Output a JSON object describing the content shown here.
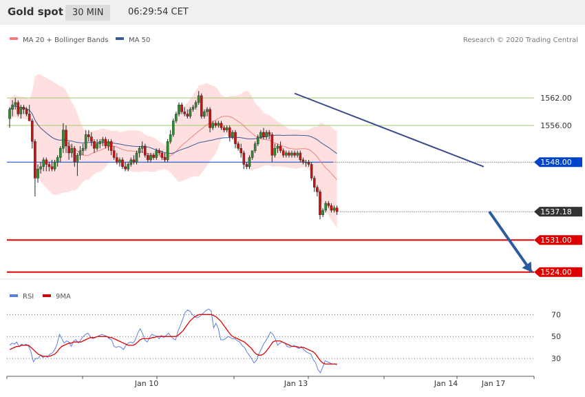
{
  "header": {
    "title": "Gold spot",
    "timeframe": "30 MIN",
    "time": "06:29:54 CET"
  },
  "legend": {
    "ma20": "MA 20 + Bollinger Bands",
    "ma50": "MA 50",
    "credit": "Research © 2020 Trading Central"
  },
  "rsi_legend": {
    "rsi": "RSI",
    "ma9": "9MA"
  },
  "colors": {
    "candle_up": "#2e8b2e",
    "candle_down": "#cc1111",
    "band": "#ffd6d6",
    "ma20": "#f08080",
    "ma50": "#3a5a9a",
    "support": "#0044cc",
    "resistance": "#9ccc65",
    "target": "#dd0000",
    "current": "#333333",
    "arrow": "#2a5aa0",
    "rsi_line": "#5b7fe0",
    "rsi_ma": "#dd0000"
  },
  "chart_data": [
    {
      "type": "candlestick",
      "title": "Gold spot",
      "timeframe": "30 MIN",
      "ylim": [
        1520.5,
        1571.5
      ],
      "x_labels": [
        "Jan 10",
        "Jan 13",
        "Jan 14",
        "Jan 17"
      ],
      "price_levels": [
        {
          "value": 1562.0,
          "label": "1562.00",
          "kind": "resistance"
        },
        {
          "value": 1556.0,
          "label": "1556.00",
          "kind": "resistance"
        },
        {
          "value": 1548.0,
          "label": "1548.00",
          "kind": "pivot"
        },
        {
          "value": 1537.18,
          "label": "1537.18",
          "kind": "current"
        },
        {
          "value": 1531.0,
          "label": "1531.00",
          "kind": "target"
        },
        {
          "value": 1524.0,
          "label": "1524.00",
          "kind": "target"
        }
      ],
      "candles": [
        [
          1557.5,
          1560.0,
          1555.5,
          1559.5
        ],
        [
          1559.5,
          1561.5,
          1558.0,
          1560.5
        ],
        [
          1560.5,
          1562.0,
          1559.5,
          1561.0
        ],
        [
          1561.0,
          1561.5,
          1558.0,
          1558.5
        ],
        [
          1558.5,
          1560.5,
          1557.5,
          1560.0
        ],
        [
          1560.0,
          1560.5,
          1558.5,
          1559.5
        ],
        [
          1559.5,
          1560.0,
          1558.0,
          1558.5
        ],
        [
          1558.5,
          1560.5,
          1557.5,
          1557.0
        ],
        [
          1557.0,
          1557.5,
          1551.0,
          1552.5
        ],
        [
          1552.5,
          1553.0,
          1540.5,
          1544.5
        ],
        [
          1544.5,
          1547.5,
          1543.5,
          1546.5
        ],
        [
          1546.5,
          1548.0,
          1545.5,
          1547.0
        ],
        [
          1547.0,
          1549.0,
          1546.0,
          1548.5
        ],
        [
          1548.5,
          1549.0,
          1546.0,
          1547.5
        ],
        [
          1547.5,
          1548.0,
          1546.0,
          1547.0
        ],
        [
          1547.0,
          1548.5,
          1546.0,
          1546.5
        ],
        [
          1546.5,
          1548.5,
          1546.0,
          1548.0
        ],
        [
          1548.0,
          1549.5,
          1547.0,
          1549.0
        ],
        [
          1549.0,
          1551.5,
          1548.0,
          1551.0
        ],
        [
          1551.0,
          1556.5,
          1550.0,
          1555.0
        ],
        [
          1555.0,
          1556.0,
          1550.0,
          1551.5
        ],
        [
          1551.5,
          1552.5,
          1548.5,
          1550.0
        ],
        [
          1550.0,
          1552.0,
          1549.0,
          1551.0
        ],
        [
          1551.0,
          1551.5,
          1547.0,
          1548.0
        ],
        [
          1548.0,
          1550.0,
          1545.0,
          1549.5
        ],
        [
          1549.5,
          1551.5,
          1548.5,
          1550.5
        ],
        [
          1550.5,
          1552.0,
          1549.5,
          1551.0
        ],
        [
          1551.0,
          1555.0,
          1550.5,
          1554.0
        ],
        [
          1554.0,
          1555.0,
          1552.5,
          1553.5
        ],
        [
          1553.5,
          1554.5,
          1551.5,
          1552.5
        ],
        [
          1552.5,
          1553.0,
          1550.0,
          1551.0
        ],
        [
          1551.0,
          1553.0,
          1550.5,
          1552.0
        ],
        [
          1552.0,
          1553.0,
          1551.0,
          1552.5
        ],
        [
          1552.5,
          1553.5,
          1551.5,
          1553.0
        ],
        [
          1553.0,
          1553.5,
          1551.0,
          1551.5
        ],
        [
          1551.5,
          1553.0,
          1550.5,
          1552.5
        ],
        [
          1552.5,
          1553.0,
          1549.5,
          1550.5
        ],
        [
          1550.5,
          1551.5,
          1548.5,
          1549.0
        ],
        [
          1549.0,
          1550.0,
          1547.5,
          1548.0
        ],
        [
          1548.0,
          1549.0,
          1547.0,
          1548.5
        ],
        [
          1548.5,
          1549.0,
          1546.5,
          1547.0
        ],
        [
          1547.0,
          1548.0,
          1546.0,
          1546.5
        ],
        [
          1546.5,
          1548.0,
          1546.0,
          1547.5
        ],
        [
          1547.5,
          1549.0,
          1547.0,
          1548.5
        ],
        [
          1548.5,
          1549.5,
          1547.5,
          1548.0
        ],
        [
          1548.0,
          1550.5,
          1547.5,
          1550.0
        ],
        [
          1550.0,
          1551.5,
          1549.0,
          1551.0
        ],
        [
          1551.0,
          1552.5,
          1550.0,
          1551.5
        ],
        [
          1551.5,
          1552.0,
          1549.0,
          1549.5
        ],
        [
          1549.5,
          1550.0,
          1548.0,
          1548.5
        ],
        [
          1548.5,
          1550.0,
          1548.0,
          1549.5
        ],
        [
          1549.5,
          1550.0,
          1548.5,
          1549.0
        ],
        [
          1549.0,
          1551.0,
          1548.5,
          1550.5
        ],
        [
          1550.5,
          1551.0,
          1549.5,
          1550.0
        ],
        [
          1550.0,
          1550.5,
          1548.5,
          1549.0
        ],
        [
          1549.0,
          1550.0,
          1548.0,
          1548.5
        ],
        [
          1548.5,
          1553.0,
          1548.0,
          1552.5
        ],
        [
          1552.5,
          1555.0,
          1552.0,
          1554.0
        ],
        [
          1554.0,
          1557.5,
          1553.5,
          1557.0
        ],
        [
          1557.0,
          1559.0,
          1556.5,
          1558.5
        ],
        [
          1558.5,
          1561.0,
          1558.0,
          1560.5
        ],
        [
          1560.5,
          1561.0,
          1558.5,
          1559.0
        ],
        [
          1559.0,
          1560.0,
          1558.0,
          1558.5
        ],
        [
          1558.5,
          1559.5,
          1557.5,
          1558.0
        ],
        [
          1558.0,
          1560.0,
          1557.5,
          1559.5
        ],
        [
          1559.5,
          1560.5,
          1559.0,
          1560.0
        ],
        [
          1560.0,
          1561.5,
          1559.5,
          1561.0
        ],
        [
          1561.0,
          1563.5,
          1560.5,
          1562.5
        ],
        [
          1562.5,
          1563.0,
          1557.5,
          1558.0
        ],
        [
          1558.0,
          1559.5,
          1557.5,
          1559.0
        ],
        [
          1559.0,
          1560.0,
          1558.0,
          1559.5
        ],
        [
          1559.5,
          1560.0,
          1554.5,
          1555.5
        ],
        [
          1555.5,
          1557.0,
          1555.0,
          1556.5
        ],
        [
          1556.5,
          1557.0,
          1555.5,
          1556.0
        ],
        [
          1556.0,
          1557.0,
          1555.5,
          1556.5
        ],
        [
          1556.5,
          1557.0,
          1555.0,
          1555.5
        ],
        [
          1555.5,
          1556.0,
          1554.5,
          1555.0
        ],
        [
          1555.0,
          1556.0,
          1554.5,
          1555.5
        ],
        [
          1555.5,
          1556.0,
          1552.5,
          1553.5
        ],
        [
          1553.5,
          1555.0,
          1553.0,
          1554.5
        ],
        [
          1554.5,
          1555.0,
          1551.0,
          1552.0
        ],
        [
          1552.0,
          1552.5,
          1550.5,
          1551.0
        ],
        [
          1551.0,
          1552.0,
          1549.0,
          1550.0
        ],
        [
          1550.0,
          1550.5,
          1546.5,
          1547.5
        ],
        [
          1547.5,
          1548.0,
          1546.5,
          1547.0
        ],
        [
          1547.0,
          1549.5,
          1546.5,
          1549.0
        ],
        [
          1549.0,
          1550.5,
          1548.5,
          1550.5
        ],
        [
          1550.5,
          1552.5,
          1550.0,
          1552.0
        ],
        [
          1552.0,
          1554.0,
          1551.5,
          1553.5
        ],
        [
          1553.5,
          1555.0,
          1553.0,
          1554.5
        ],
        [
          1554.5,
          1555.5,
          1553.0,
          1553.5
        ],
        [
          1553.5,
          1555.0,
          1553.0,
          1554.5
        ],
        [
          1554.5,
          1555.0,
          1553.0,
          1554.0
        ],
        [
          1554.0,
          1554.5,
          1548.0,
          1549.5
        ],
        [
          1549.5,
          1552.0,
          1549.0,
          1551.0
        ],
        [
          1551.0,
          1552.0,
          1550.0,
          1551.5
        ],
        [
          1551.5,
          1552.5,
          1550.0,
          1550.5
        ],
        [
          1550.5,
          1551.0,
          1549.0,
          1549.5
        ],
        [
          1549.5,
          1550.5,
          1549.0,
          1550.0
        ],
        [
          1550.0,
          1550.5,
          1549.0,
          1549.5
        ],
        [
          1549.5,
          1550.5,
          1549.0,
          1550.0
        ],
        [
          1550.0,
          1550.5,
          1549.0,
          1549.5
        ],
        [
          1549.5,
          1550.5,
          1549.0,
          1550.0
        ],
        [
          1550.0,
          1550.5,
          1548.0,
          1548.5
        ],
        [
          1548.5,
          1549.0,
          1547.5,
          1548.0
        ],
        [
          1548.0,
          1548.5,
          1547.0,
          1548.0
        ],
        [
          1548.0,
          1548.5,
          1547.0,
          1547.5
        ],
        [
          1547.5,
          1548.0,
          1544.0,
          1544.5
        ],
        [
          1544.5,
          1545.0,
          1541.5,
          1542.5
        ],
        [
          1542.5,
          1543.0,
          1540.5,
          1541.5
        ],
        [
          1541.5,
          1542.0,
          1535.5,
          1536.5
        ],
        [
          1536.5,
          1538.0,
          1536.0,
          1537.5
        ],
        [
          1537.5,
          1539.5,
          1537.0,
          1539.0
        ],
        [
          1539.0,
          1539.5,
          1538.0,
          1538.5
        ],
        [
          1538.5,
          1539.0,
          1537.0,
          1537.5
        ],
        [
          1537.5,
          1538.5,
          1537.0,
          1538.0
        ],
        [
          1538.0,
          1538.5,
          1536.5,
          1537.18
        ]
      ],
      "trendline": {
        "from": [
          101,
          1563.0
        ],
        "to": [
          168,
          1547.0
        ]
      },
      "projection_arrow": {
        "from": [
          170,
          1537.18
        ],
        "to": [
          185,
          1524.0
        ]
      }
    },
    {
      "type": "line",
      "title": "RSI",
      "ylim": [
        15,
        84
      ],
      "y_ticks": [
        30,
        50,
        70
      ],
      "series": [
        {
          "name": "RSI",
          "values": [
            42,
            44,
            43,
            45,
            41,
            43,
            42,
            43,
            41,
            36,
            27,
            30,
            30,
            33,
            31,
            32,
            31,
            34,
            35,
            38,
            43,
            52,
            48,
            44,
            46,
            45,
            41,
            46,
            47,
            44,
            47,
            50,
            52,
            53,
            50,
            48,
            49,
            50,
            51,
            52,
            51,
            50,
            48,
            47,
            41,
            40,
            41,
            40,
            38,
            42,
            44,
            45,
            44,
            47,
            53,
            57,
            53,
            47,
            45,
            49,
            52,
            51,
            50,
            48,
            51,
            49,
            51,
            53,
            50,
            48,
            47,
            55,
            60,
            66,
            72,
            74,
            73,
            70,
            68,
            67,
            68,
            70,
            72,
            74,
            75,
            73,
            58,
            62,
            57,
            47,
            47,
            48,
            50,
            49,
            48,
            48,
            46,
            45,
            42,
            40,
            36,
            33,
            30,
            26,
            28,
            34,
            38,
            43,
            46,
            50,
            54,
            52,
            48,
            42,
            44,
            45,
            44,
            41,
            40,
            41,
            42,
            40,
            39,
            41,
            38,
            36,
            35,
            34,
            29,
            26,
            20,
            17,
            22,
            28,
            27,
            26,
            25,
            25,
            24
          ]
        },
        {
          "name": "9MA",
          "values": [
            38,
            39,
            40,
            41,
            41,
            42,
            42,
            42,
            42,
            40,
            38,
            36,
            34,
            33,
            32,
            32,
            32,
            32,
            33,
            34,
            36,
            39,
            41,
            42,
            43,
            44,
            44,
            45,
            45,
            45,
            45,
            46,
            47,
            48,
            49,
            49,
            49,
            50,
            50,
            50,
            50,
            50,
            49,
            49,
            48,
            47,
            46,
            45,
            44,
            43,
            42,
            42,
            42,
            43,
            45,
            47,
            48,
            48,
            48,
            48,
            49,
            49,
            50,
            50,
            50,
            50,
            50,
            50,
            50,
            50,
            50,
            51,
            53,
            55,
            58,
            61,
            64,
            66,
            68,
            69,
            70,
            70,
            70,
            70,
            70,
            70,
            69,
            68,
            66,
            64,
            61,
            58,
            55,
            52,
            50,
            49,
            48,
            47,
            46,
            45,
            43,
            41,
            39,
            36,
            34,
            33,
            33,
            34,
            36,
            39,
            42,
            45,
            46,
            46,
            46,
            45,
            44,
            43,
            42,
            41,
            41,
            41,
            40,
            40,
            40,
            39,
            38,
            37,
            36,
            34,
            31,
            28,
            26,
            25,
            25,
            25,
            25,
            25,
            25
          ]
        }
      ]
    }
  ]
}
